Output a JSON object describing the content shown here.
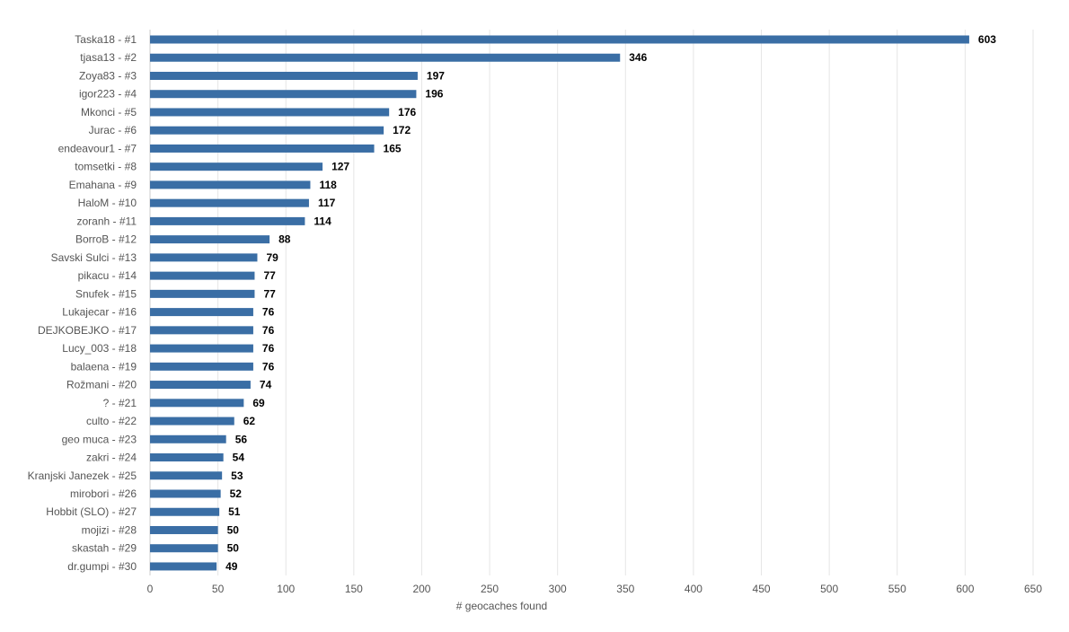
{
  "chart_data": {
    "type": "bar",
    "orientation": "horizontal",
    "title": "",
    "xlabel": "# geocaches found",
    "ylabel": "",
    "xlim": [
      0,
      650
    ],
    "xticks": [
      0,
      50,
      100,
      150,
      200,
      250,
      300,
      350,
      400,
      450,
      500,
      550,
      600,
      650
    ],
    "grid": true,
    "colors": {
      "bar": "#3a6ea5"
    },
    "categories": [
      "Taska18 - #1",
      "tjasa13 - #2",
      "Zoya83 - #3",
      "igor223 - #4",
      "Mkonci - #5",
      "Jurac - #6",
      "endeavour1 - #7",
      "tomsetki - #8",
      "Emahana - #9",
      "HaloM - #10",
      "zoranh - #11",
      "BorroB - #12",
      "Savski Sulci - #13",
      "pikacu - #14",
      "Snufek - #15",
      "Lukajecar - #16",
      "DEJKOBEJKO - #17",
      "Lucy_003 - #18",
      "balaena - #19",
      "Rožmani - #20",
      "? - #21",
      "culto - #22",
      "geo muca - #23",
      "zakri - #24",
      "Kranjski Janezek - #25",
      "mirobori - #26",
      "Hobbit (SLO) - #27",
      "mojizi - #28",
      "skastah - #29",
      "dr.gumpi - #30"
    ],
    "values": [
      603,
      346,
      197,
      196,
      176,
      172,
      165,
      127,
      118,
      117,
      114,
      88,
      79,
      77,
      77,
      76,
      76,
      76,
      76,
      74,
      69,
      62,
      56,
      54,
      53,
      52,
      51,
      50,
      50,
      49
    ]
  }
}
